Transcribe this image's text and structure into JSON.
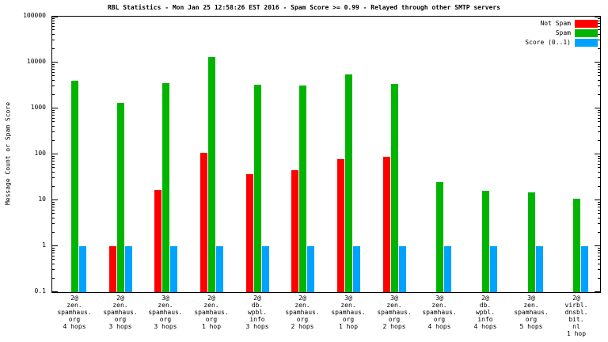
{
  "chart_data": {
    "type": "bar",
    "y_scale": "log10",
    "title": "RBL Statistics - Mon Jan 25 12:58:26 EST 2016 - Spam Score >= 0.99 - Relayed through other SMTP servers",
    "ylabel": "Message Count or Spam Score",
    "ylim": [
      0.1,
      100000
    ],
    "ytick_labels": [
      "0.1",
      "1",
      "10",
      "100",
      "1000",
      "10000",
      "100000"
    ],
    "grid": false,
    "legend_position": "top-right-inside",
    "categories": [
      [
        "2@",
        "zen.",
        "spamhaus.",
        "org",
        "4 hops"
      ],
      [
        "2@",
        "zen.",
        "spamhaus.",
        "org",
        "3 hops"
      ],
      [
        "3@",
        "zen.",
        "spamhaus.",
        "org",
        "3 hops"
      ],
      [
        "2@",
        "zen.",
        "spamhaus.",
        "org",
        "1 hop"
      ],
      [
        "2@",
        "db.",
        "wpbl.",
        "info",
        "3 hops"
      ],
      [
        "2@",
        "zen.",
        "spamhaus.",
        "org",
        "2 hops"
      ],
      [
        "3@",
        "zen.",
        "spamhaus.",
        "org",
        "1 hop"
      ],
      [
        "3@",
        "zen.",
        "spamhaus.",
        "org",
        "2 hops"
      ],
      [
        "3@",
        "zen.",
        "spamhaus.",
        "org",
        "4 hops"
      ],
      [
        "2@",
        "db.",
        "wpbl.",
        "info",
        "4 hops"
      ],
      [
        "3@",
        "zen.",
        "spamhaus.",
        "org",
        "5 hops"
      ],
      [
        "2@",
        "virbl.",
        "dnsbl.",
        "bit.",
        "nl",
        "1 hop"
      ]
    ],
    "series": [
      {
        "name": "Not Spam",
        "color": "#ff0000",
        "values": [
          0,
          1,
          17,
          110,
          37,
          45,
          80,
          90,
          0,
          0,
          0,
          0
        ]
      },
      {
        "name": "Spam",
        "color": "#00b400",
        "values": [
          4000,
          1300,
          3500,
          13000,
          3300,
          3200,
          5500,
          3400,
          25,
          16,
          15,
          11
        ]
      },
      {
        "name": "Score (0..1)",
        "color": "#00a2ff",
        "values": [
          1,
          1,
          1,
          1,
          1,
          1,
          1,
          1,
          1,
          1,
          1,
          1
        ]
      }
    ]
  }
}
